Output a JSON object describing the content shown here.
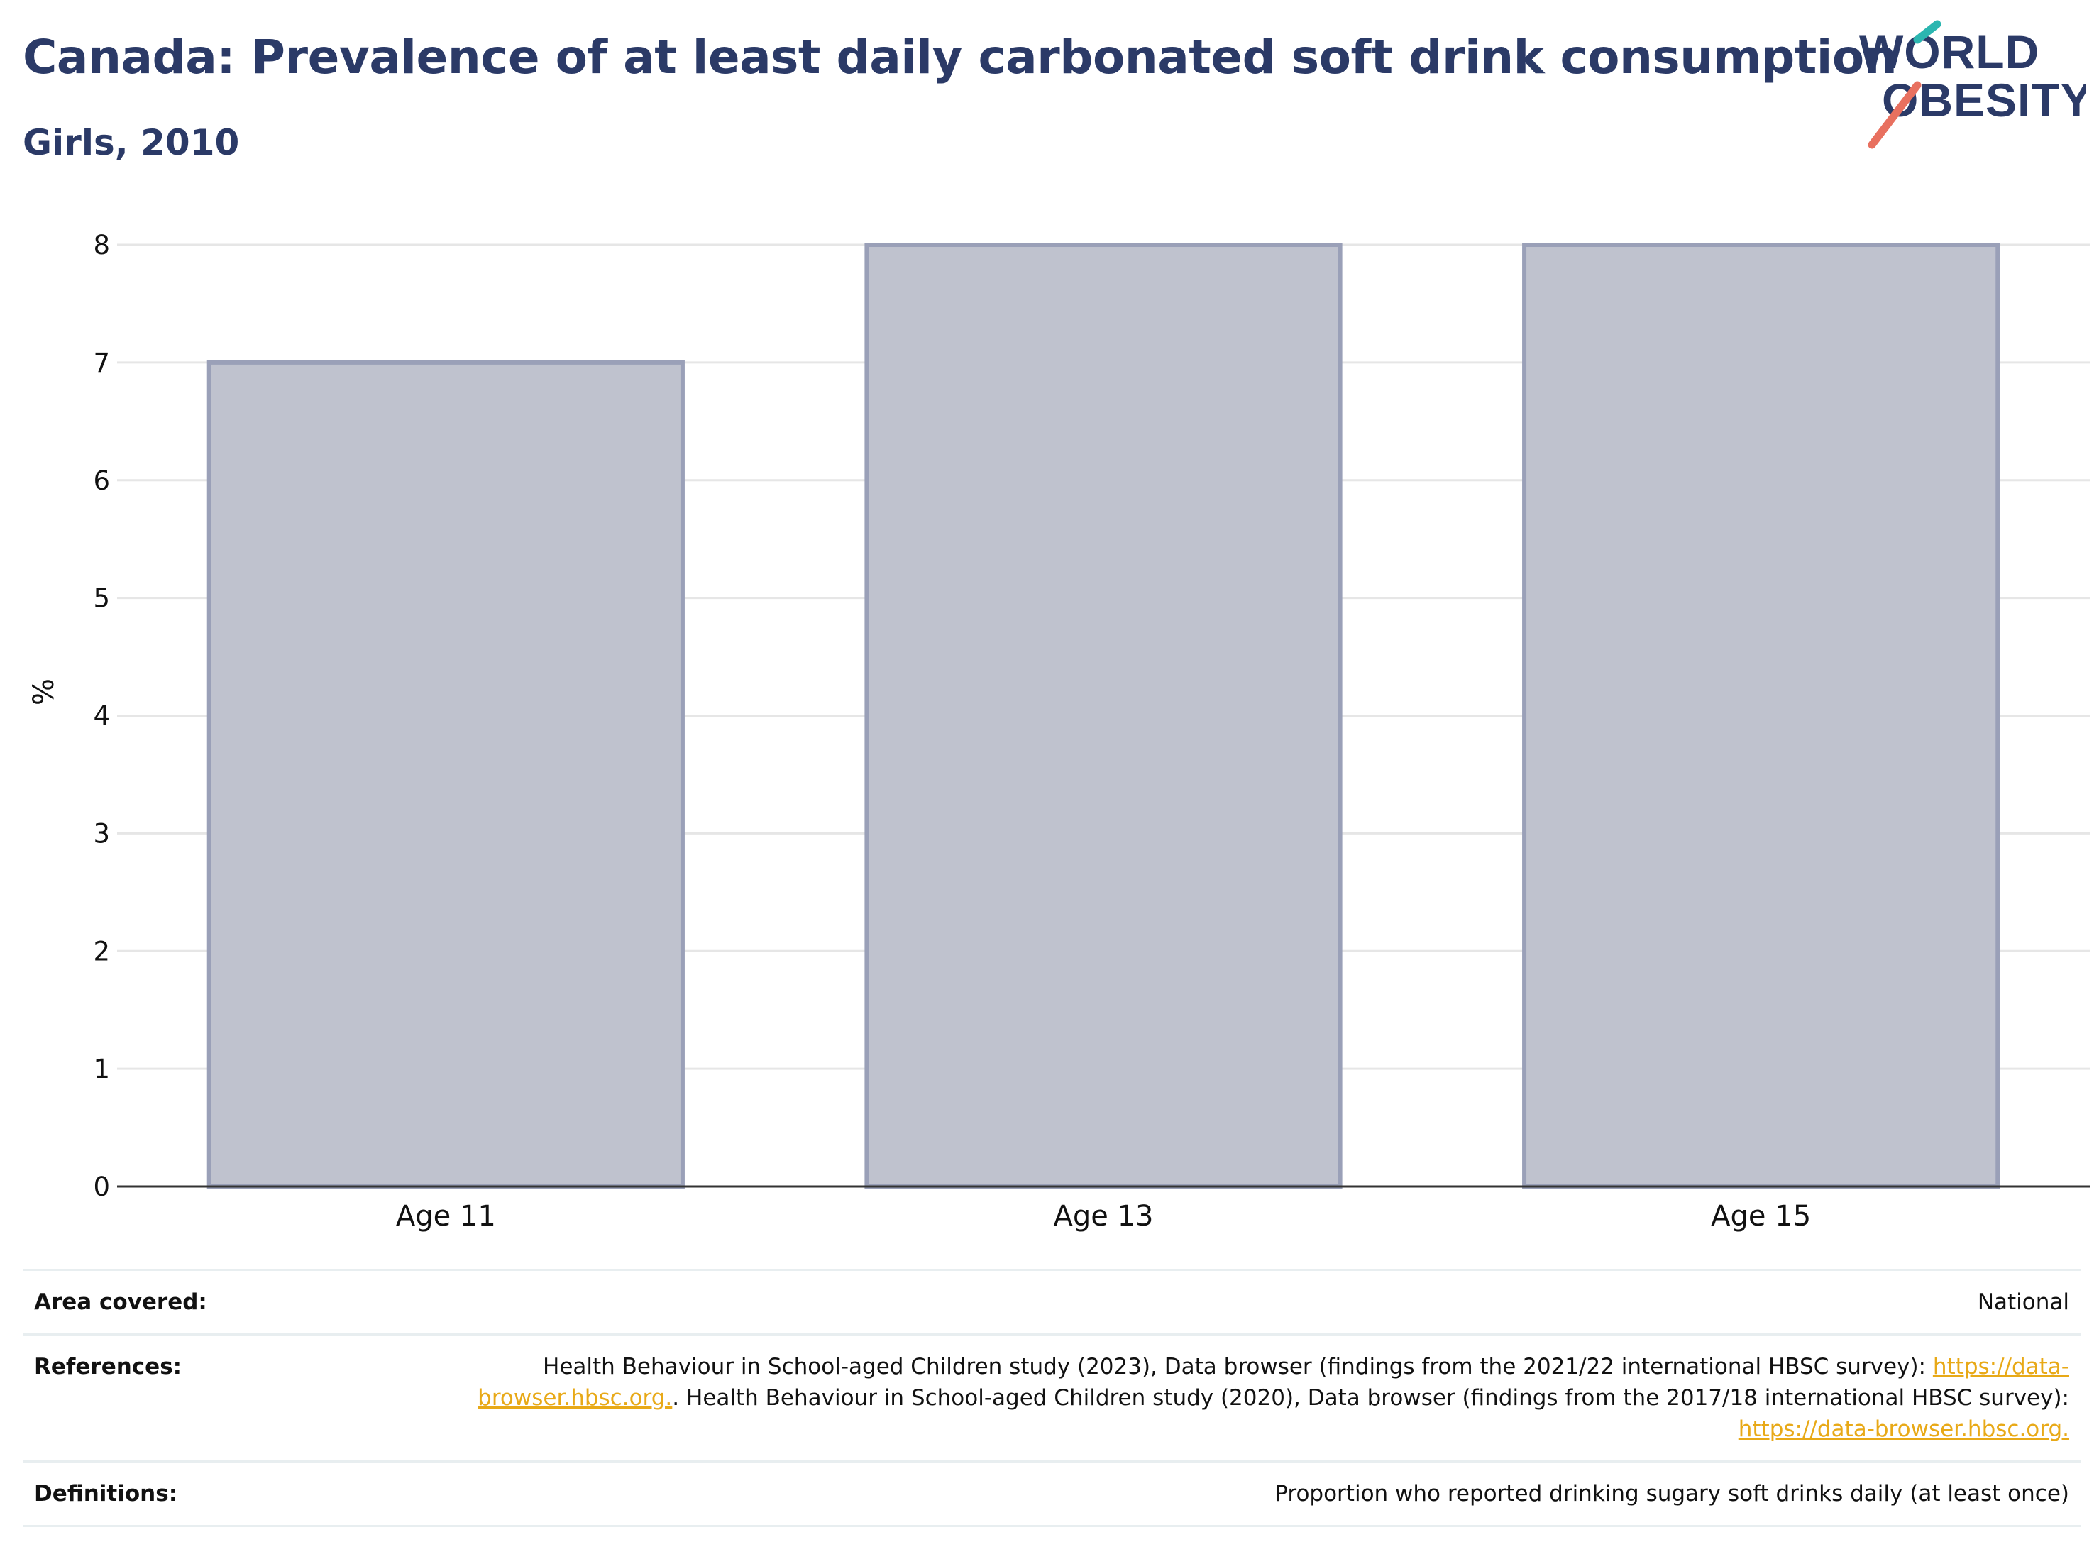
{
  "header": {
    "title": "Canada: Prevalence of at least daily carbonated soft drink consumption",
    "subtitle": "Girls, 2010",
    "logo_text_line1": "WORLD",
    "logo_text_line2": "OBESITY"
  },
  "colors": {
    "title": "#2b3a67",
    "bar_fill": "#bfc2ce",
    "bar_stroke": "#9aa0b8",
    "link": "#e8a917",
    "logo_text": "#2b3a67",
    "logo_teal": "#2bb6b0",
    "logo_coral": "#e8705f"
  },
  "chart_data": {
    "type": "bar",
    "categories": [
      "Age 11",
      "Age 13",
      "Age 15"
    ],
    "values": [
      7,
      8,
      8
    ],
    "title": "Canada: Prevalence of at least daily carbonated soft drink consumption",
    "subtitle": "Girls, 2010",
    "xlabel": "",
    "ylabel": "%",
    "ylim": [
      0,
      8
    ],
    "yticks": [
      0,
      1,
      2,
      3,
      4,
      5,
      6,
      7,
      8
    ],
    "grid": true,
    "legend": "none"
  },
  "info": {
    "area": {
      "label": "Area covered:",
      "value": "National"
    },
    "references": {
      "label": "References:",
      "part1": "Health Behaviour in School-aged Children study (2023), Data browser (findings from the 2021/22 international HBSC survey): ",
      "link1": "https://data-browser.hbsc.org.",
      "part2": ". Health Behaviour in School-aged Children study (2020), Data browser (findings from the 2017/18 international HBSC survey): ",
      "link2": "https://data-browser.hbsc.org."
    },
    "definitions": {
      "label": "Definitions:",
      "value": "Proportion who reported drinking sugary soft drinks daily (at least once)"
    }
  }
}
